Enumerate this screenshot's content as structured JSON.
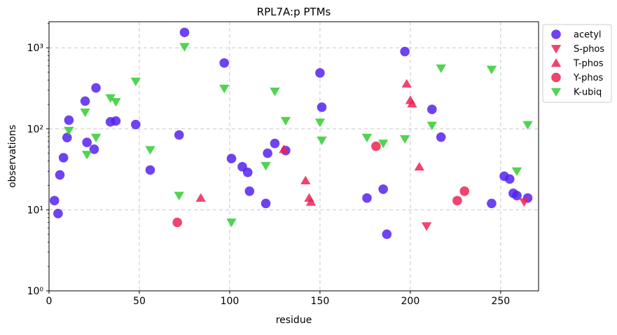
{
  "chart_data": {
    "type": "scatter",
    "title": "RPL7A:p PTMs",
    "xlabel": "residue",
    "ylabel": "observations",
    "xlim": [
      0,
      271
    ],
    "ylim": [
      1,
      2100
    ],
    "yscale": "log",
    "grid": true,
    "legend_position": "outside-top-right",
    "x_ticks": [
      0,
      50,
      100,
      150,
      200,
      250
    ],
    "x_tick_labels": [
      "0",
      "50",
      "100",
      "150",
      "200",
      "250"
    ],
    "y_ticks": [
      1,
      10,
      100,
      1000
    ],
    "y_tick_labels": [
      "10⁰",
      "10¹",
      "10²",
      "10³"
    ],
    "series": [
      {
        "name": "acetyl",
        "marker": "circle",
        "color": "#5522ee",
        "points": [
          [
            3,
            13
          ],
          [
            5,
            9
          ],
          [
            6,
            27
          ],
          [
            8,
            44
          ],
          [
            10,
            78
          ],
          [
            11,
            128
          ],
          [
            20,
            220
          ],
          [
            21,
            68
          ],
          [
            25,
            56
          ],
          [
            26,
            320
          ],
          [
            34,
            122
          ],
          [
            37,
            125
          ],
          [
            48,
            113
          ],
          [
            56,
            31
          ],
          [
            72,
            84
          ],
          [
            75,
            1550
          ],
          [
            97,
            650
          ],
          [
            101,
            43
          ],
          [
            107,
            34
          ],
          [
            110,
            29
          ],
          [
            111,
            17
          ],
          [
            120,
            12
          ],
          [
            121,
            50
          ],
          [
            125,
            66
          ],
          [
            131,
            54
          ],
          [
            150,
            490
          ],
          [
            151,
            185
          ],
          [
            176,
            14
          ],
          [
            185,
            18
          ],
          [
            187,
            5
          ],
          [
            197,
            900
          ],
          [
            212,
            174
          ],
          [
            217,
            79
          ],
          [
            245,
            12
          ],
          [
            252,
            26
          ],
          [
            255,
            24
          ],
          [
            257,
            16
          ],
          [
            259,
            15
          ],
          [
            265,
            14
          ]
        ]
      },
      {
        "name": "S-phos",
        "marker": "triangle-down",
        "color": "#ee2255",
        "points": [
          [
            209,
            6.3
          ],
          [
            263,
            12.5
          ]
        ]
      },
      {
        "name": "T-phos",
        "marker": "triangle-up",
        "color": "#ee2255",
        "points": [
          [
            84,
            14
          ],
          [
            130,
            56
          ],
          [
            142,
            23
          ],
          [
            144,
            14
          ],
          [
            145,
            12.5
          ],
          [
            198,
            360
          ],
          [
            200,
            225
          ],
          [
            201,
            205
          ],
          [
            205,
            34
          ]
        ]
      },
      {
        "name": "Y-phos",
        "marker": "circle",
        "color": "#ee2255",
        "points": [
          [
            71,
            7
          ],
          [
            181,
            61
          ],
          [
            226,
            13
          ],
          [
            230,
            17
          ]
        ]
      },
      {
        "name": "K-ubiq",
        "marker": "triangle-down",
        "color": "#33cc33",
        "points": [
          [
            11,
            95
          ],
          [
            20,
            160
          ],
          [
            21,
            48
          ],
          [
            26,
            78
          ],
          [
            34,
            240
          ],
          [
            37,
            215
          ],
          [
            48,
            385
          ],
          [
            56,
            55
          ],
          [
            72,
            15
          ],
          [
            75,
            1030
          ],
          [
            97,
            315
          ],
          [
            101,
            7
          ],
          [
            120,
            35
          ],
          [
            125,
            290
          ],
          [
            131,
            126
          ],
          [
            150,
            120
          ],
          [
            151,
            72
          ],
          [
            176,
            78
          ],
          [
            185,
            66
          ],
          [
            197,
            75
          ],
          [
            212,
            110
          ],
          [
            217,
            560
          ],
          [
            245,
            540
          ],
          [
            259,
            30
          ],
          [
            265,
            112
          ]
        ]
      }
    ]
  }
}
